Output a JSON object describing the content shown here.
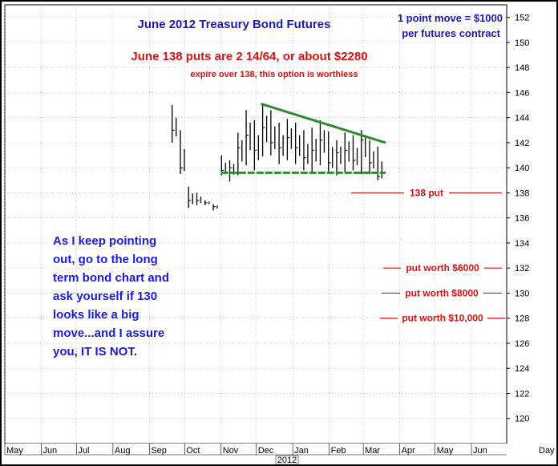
{
  "chart_data": {
    "type": "bar",
    "subtype": "ohlc",
    "title": "June 2012 Treasury Bond Futures",
    "subtitle": "June 138 puts are 2 14/64, or about $2280",
    "annotations": {
      "point_move_line1": "1 point move = $1000",
      "point_move_line2": "per futures contract",
      "expire_note": "expire over 138, this option is worthless",
      "commentary": [
        "As I keep pointing",
        "out, go to the long",
        "term bond chart and",
        "ask yourself if 130",
        "looks like a big",
        "move...and I assure",
        "you, IT IS NOT."
      ],
      "levels": [
        {
          "label": "138 put",
          "y": 138
        },
        {
          "label": "put worth $6000",
          "y": 132
        },
        {
          "label": "put worth $8000",
          "y": 130
        },
        {
          "label": "put worth $10,000",
          "y": 128
        }
      ]
    },
    "y_axis": {
      "min": 118,
      "max": 153,
      "ticks": [
        120,
        122,
        124,
        126,
        128,
        130,
        132,
        134,
        136,
        138,
        140,
        142,
        144,
        146,
        148,
        150,
        152
      ]
    },
    "x_axis": {
      "months": [
        "May",
        "Jun",
        "Jul",
        "Aug",
        "Sep",
        "Oct",
        "Nov",
        "Dec",
        "Jan",
        "Feb",
        "Mar",
        "Apr",
        "May",
        "Jun",
        "Day"
      ],
      "year_label": "2012",
      "start": "2011-05-01",
      "end": "2012-07-01"
    },
    "trendlines": [
      {
        "name": "descending resistance",
        "color": "#2e8b2e",
        "from": [
          "2011-12-05",
          145.1
        ],
        "to": [
          "2012-03-20",
          142.0
        ]
      },
      {
        "name": "horizontal support",
        "color": "#2e8b2e",
        "dashed": true,
        "from": [
          "2011-11-01",
          139.6
        ],
        "to": [
          "2012-03-20",
          139.6
        ]
      }
    ],
    "grid": true,
    "series": [
      {
        "x": [
          "2011-09-19",
          "2011-09-26",
          "2011-10-03",
          "2011-10-10",
          "2011-10-17",
          "2011-10-24",
          "2011-10-31",
          "2011-11-07",
          "2011-11-14",
          "2011-11-21",
          "2011-11-28",
          "2011-12-05",
          "2011-12-12",
          "2011-12-19",
          "2011-12-26",
          "2012-01-02",
          "2012-01-09",
          "2012-01-16",
          "2012-01-23",
          "2012-01-30",
          "2012-02-06",
          "2012-02-13",
          "2012-02-20",
          "2012-02-27",
          "2012-03-05",
          "2012-03-12"
        ],
        "high": [
          145.0,
          143.0,
          138.5,
          138.0,
          137.4,
          137.1,
          141.0,
          140.6,
          142.8,
          144.6,
          143.8,
          145.1,
          144.6,
          143.6,
          143.9,
          143.6,
          143.0,
          143.2,
          143.8,
          142.9,
          142.2,
          142.8,
          142.6,
          143.0,
          142.2,
          141.7
        ],
        "low": [
          142.0,
          139.5,
          136.8,
          137.0,
          137.0,
          136.6,
          139.4,
          138.9,
          139.4,
          140.2,
          139.8,
          140.9,
          141.0,
          140.3,
          140.6,
          140.3,
          139.8,
          139.6,
          140.2,
          139.6,
          139.4,
          139.6,
          139.8,
          139.5,
          139.5,
          139.0
        ],
        "close": [
          143.0,
          140.0,
          137.4,
          137.4,
          137.2,
          136.9,
          139.8,
          140.0,
          141.6,
          142.6,
          141.4,
          143.2,
          142.0,
          141.6,
          142.4,
          141.6,
          140.8,
          141.4,
          142.2,
          140.4,
          141.2,
          141.4,
          140.6,
          142.2,
          140.4,
          139.3
        ]
      }
    ]
  }
}
